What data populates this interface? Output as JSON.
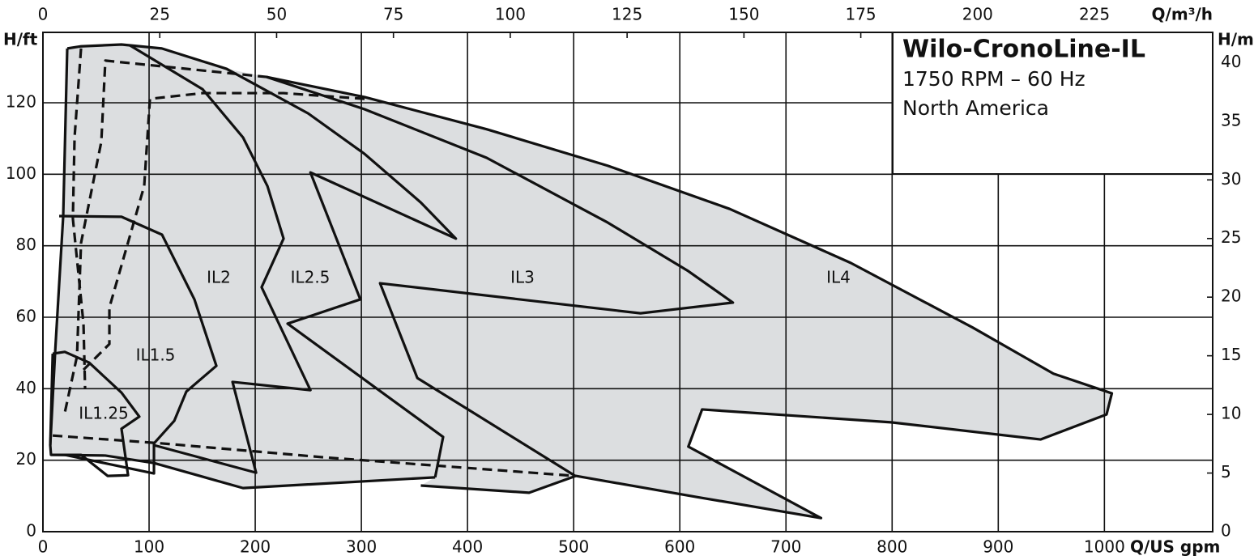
{
  "chart_data": {
    "type": "line",
    "title": "Wilo-CronoLine-IL",
    "subtitle": "1750 RPM – 60 Hz",
    "region": "North America",
    "xlabel": "Q/US gpm",
    "x2label": "Q/m³/h",
    "ylabel": "H/ft",
    "y2label": "H/m",
    "xlim": [
      0,
      1102
    ],
    "xticks": [
      0,
      100,
      200,
      300,
      400,
      500,
      600,
      700,
      800,
      900,
      1000
    ],
    "x2lim": [
      0,
      250.3
    ],
    "x2ticks": [
      0,
      25,
      50,
      75,
      100,
      125,
      150,
      175,
      200,
      225
    ],
    "ylim": [
      0,
      139.7
    ],
    "yticks": [
      0,
      20,
      40,
      60,
      80,
      100,
      120
    ],
    "y2lim": [
      0,
      42.58
    ],
    "y2ticks": [
      0,
      5,
      10,
      15,
      20,
      25,
      30,
      35,
      40
    ],
    "grid": true,
    "fill_color": "#dcdee0",
    "annotations": [
      "IL1.25",
      "IL1.5",
      "IL2",
      "IL2.5",
      "IL3",
      "IL4"
    ],
    "series": [
      {
        "color": "#111111",
        "style": "solid",
        "x": [
          211,
          303,
          418,
          532,
          647,
          761,
          876,
          952,
          1007,
          1002,
          940,
          799,
          621,
          608,
          733,
          616,
          502,
          458,
          356
        ],
        "values": [
          127.2,
          121.6,
          112.6,
          102.4,
          90.3,
          75.2,
          57.1,
          44.2,
          38.7,
          32.8,
          25.8,
          30.6,
          34.2,
          23.8,
          3.8,
          9.7,
          15.6,
          10.9,
          12.9
        ]
      },
      {
        "color": "#111111",
        "style": "solid",
        "x": [
          23,
          36,
          74,
          112,
          173,
          250,
          303,
          356,
          389,
          252,
          299,
          230.5,
          377,
          369.5
        ],
        "values": [
          135.2,
          135.8,
          136.3,
          135.2,
          129.5,
          117,
          105.7,
          92.1,
          82,
          100.5,
          65,
          58.2,
          26.5,
          15.2
        ]
      },
      {
        "color": "#111111",
        "style": "solid",
        "x": [
          211,
          303,
          418,
          532,
          608,
          650,
          563,
          317.6,
          352.7,
          501.5
        ],
        "values": [
          127.2,
          118.2,
          104.6,
          86.5,
          72.9,
          64.1,
          61.1,
          69.5,
          43,
          15.6
        ]
      },
      {
        "color": "#111111",
        "style": "solid",
        "x": [
          81.7,
          150.4,
          188.5,
          211.5,
          226.7,
          206,
          252,
          178.6,
          200.8,
          104.6
        ],
        "values": [
          136.1,
          123.8,
          110.3,
          96.7,
          82,
          68.4,
          39.6,
          41.9,
          16.5,
          24.2
        ]
      },
      {
        "color": "#111111",
        "style": "solid",
        "x": [
          15.3,
          74,
          112.2,
          142.7,
          163.4,
          135.1,
          123.7,
          104.6,
          104.6,
          20.6
        ],
        "values": [
          88.3,
          88.1,
          83.1,
          65,
          46.4,
          39.2,
          31,
          24.7,
          16.3,
          21.5
        ]
      },
      {
        "color": "#111111",
        "style": "solid",
        "x": [
          9.2,
          20.6,
          43.5,
          74,
          90.8,
          74,
          80.2,
          61,
          35.9,
          7.6,
          6.9,
          9.2
        ],
        "values": [
          49.8,
          50.3,
          47.3,
          38.9,
          32.2,
          28.8,
          15.8,
          15.6,
          21.5,
          21.5,
          24.2,
          49.8
        ]
      },
      {
        "color": "#111111",
        "style": "solid",
        "x": [
          22.9,
          19.1,
          11.5,
          6.9
        ],
        "values": [
          135.2,
          88.3,
          50.3,
          24.2
        ]
      },
      {
        "color": "#111111",
        "style": "solid",
        "x": [
          7.6,
          58.8,
          104.6,
          188.5,
          369.5
        ],
        "values": [
          21.5,
          21.3,
          19.2,
          12.2,
          15.2
        ]
      },
      {
        "color": "#111111",
        "style": "dashed",
        "x": [
          35.9,
          29.8,
          28.2,
          38.2,
          39.7
        ],
        "values": [
          135.2,
          110.3,
          87.6,
          58.2,
          40.1
        ]
      },
      {
        "color": "#111111",
        "style": "dashed",
        "x": [
          211.5,
          58.8,
          55,
          35.9,
          32.1,
          20.6
        ],
        "values": [
          127.2,
          131.8,
          109.1,
          80.8,
          49.1,
          33.3
        ]
      },
      {
        "color": "#111111",
        "style": "dashed",
        "x": [
          303,
          226.7,
          150.4,
          100.8,
          95.4,
          62.6,
          62.6,
          35.9
        ],
        "values": [
          121.1,
          122.7,
          122.7,
          121.1,
          96.7,
          62.7,
          52.5,
          44.6
        ]
      },
      {
        "color": "#111111",
        "style": "dashed",
        "x": [
          9.2,
          112.2,
          264.9,
          501.5
        ],
        "values": [
          26.9,
          24.7,
          20.8,
          15.6
        ]
      }
    ]
  }
}
